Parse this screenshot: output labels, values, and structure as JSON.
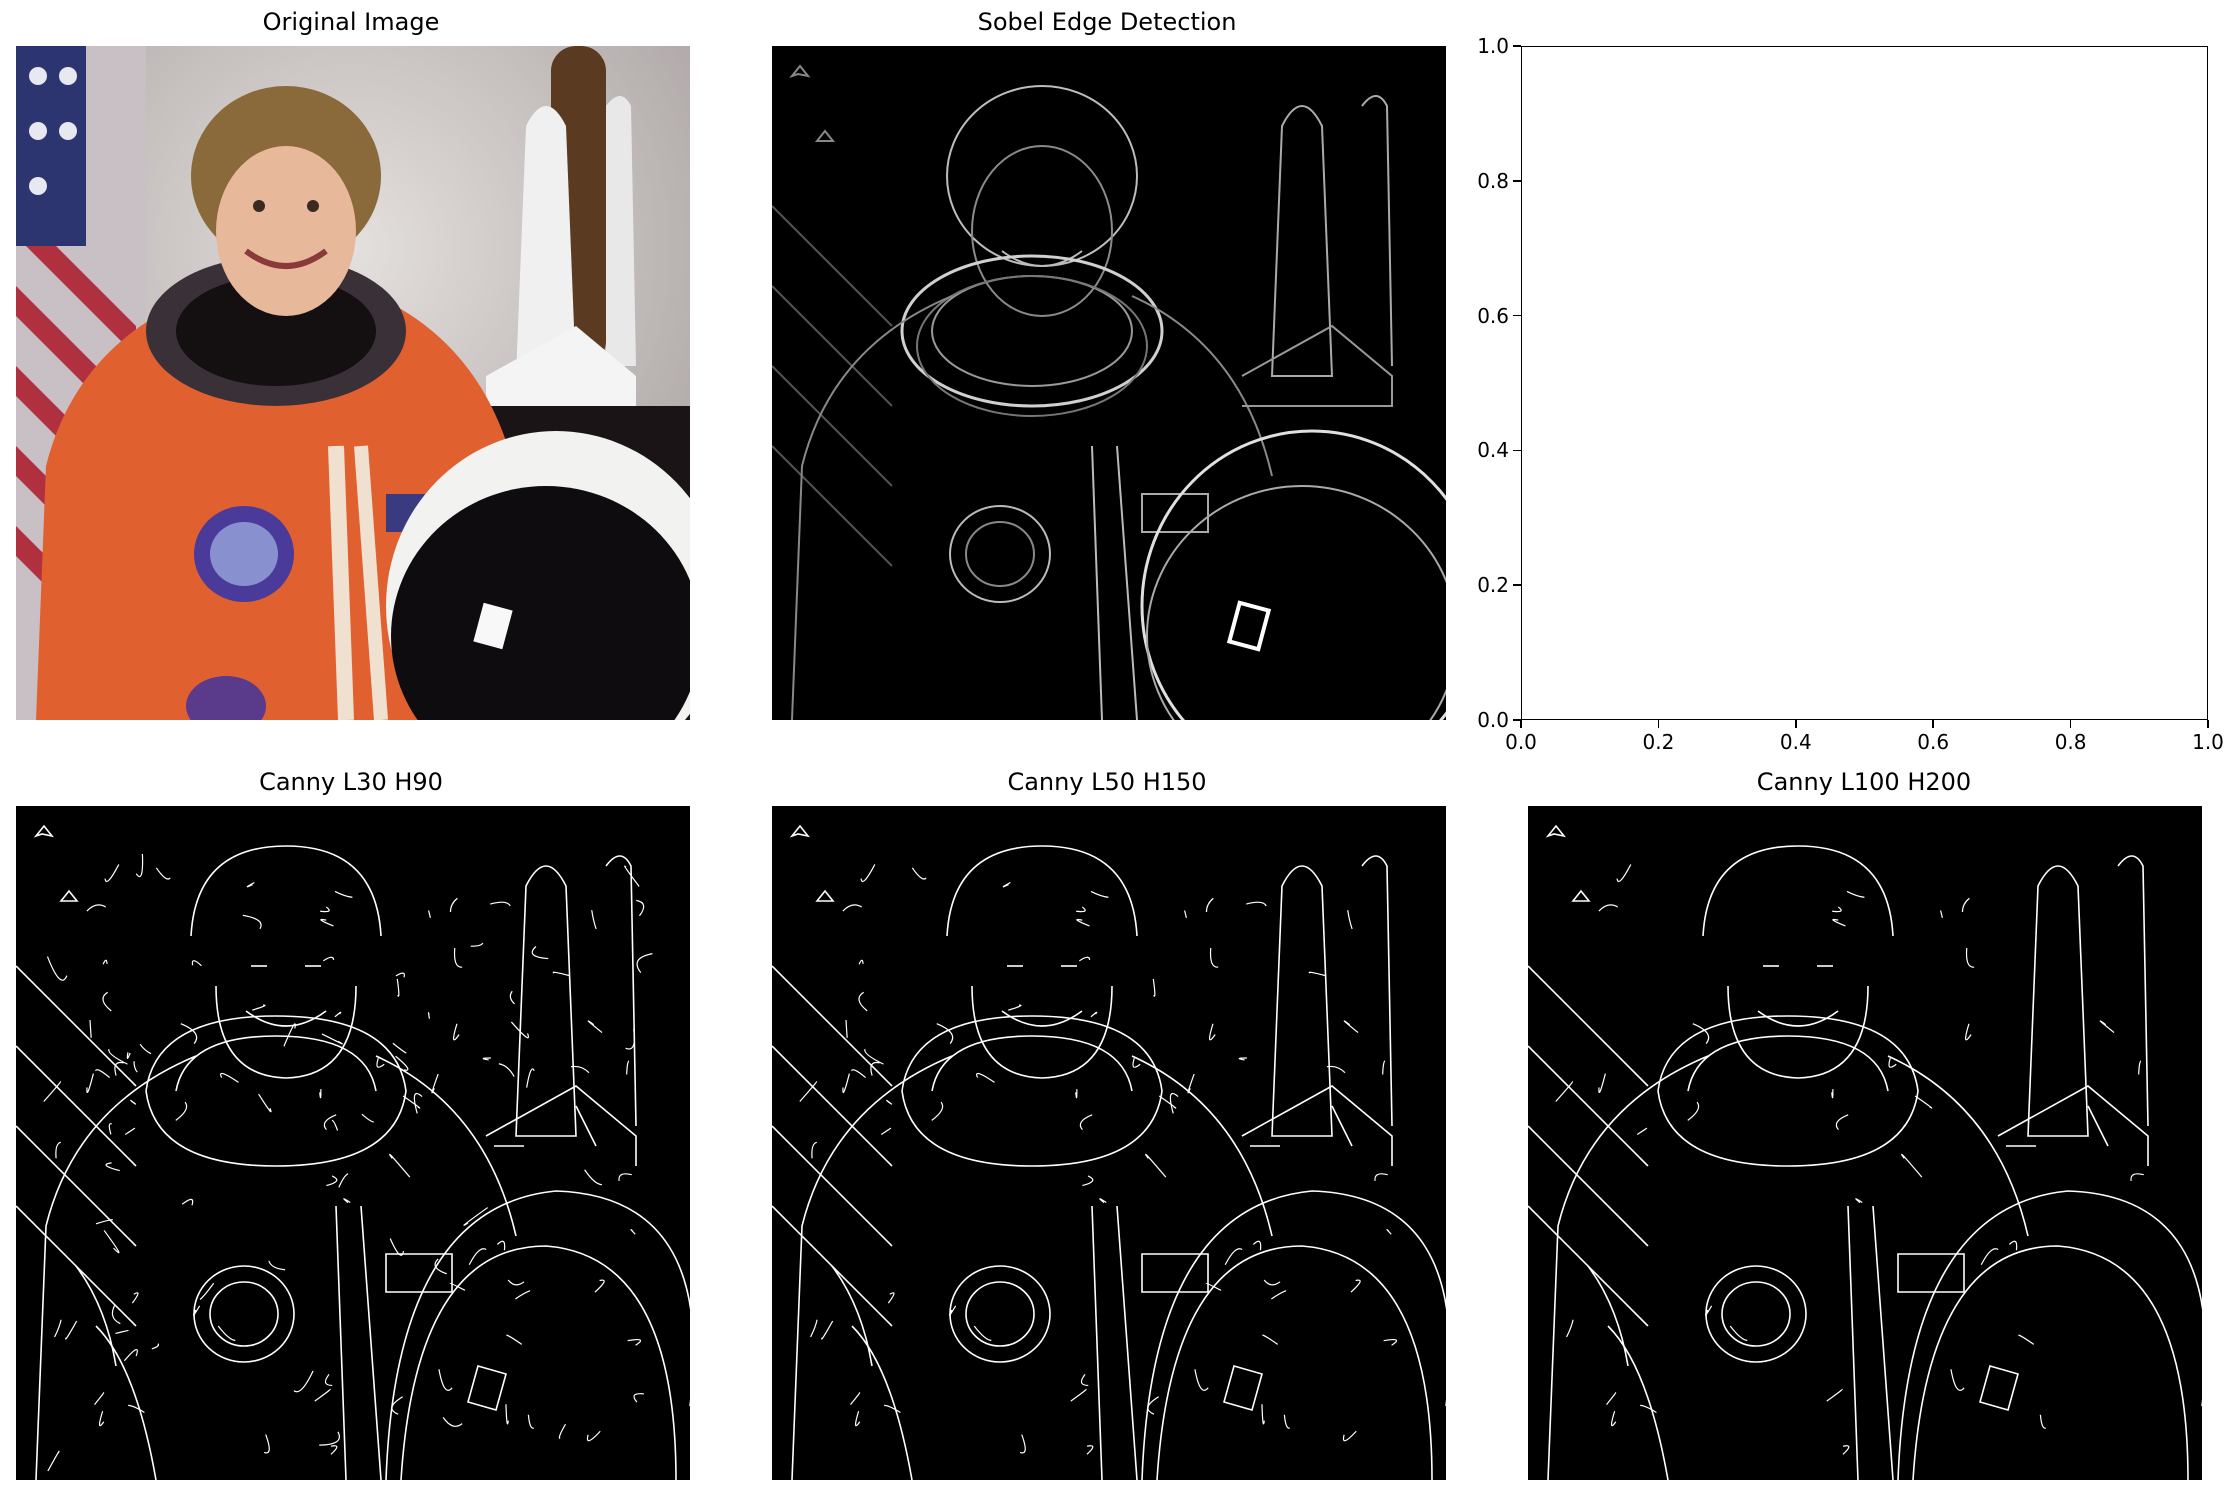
{
  "panels": {
    "original": {
      "title": "Original Image"
    },
    "sobel": {
      "title": "Sobel Edge Detection"
    },
    "canny1": {
      "title": "Canny L30 H90"
    },
    "canny2": {
      "title": "Canny L50 H150"
    },
    "canny3": {
      "title": "Canny L100 H200"
    }
  },
  "chart_data": {
    "type": "scatter",
    "title": "",
    "xlabel": "",
    "ylabel": "",
    "xlim": [
      0.0,
      1.0
    ],
    "ylim": [
      0.0,
      1.0
    ],
    "xticks": [
      "0.0",
      "0.2",
      "0.4",
      "0.6",
      "0.8",
      "1.0"
    ],
    "yticks": [
      "0.0",
      "0.2",
      "0.4",
      "0.6",
      "0.8",
      "1.0"
    ],
    "series": [],
    "grid": false
  },
  "colors": {
    "background": "#ffffff",
    "edge_bg": "#000000",
    "edge_line": "#ffffff",
    "suit": "#e0602f",
    "photo_bg": "#d8d0cc"
  }
}
